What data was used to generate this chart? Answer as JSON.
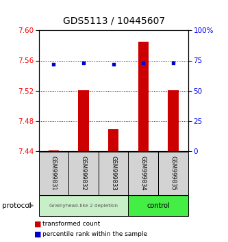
{
  "title": "GDS5113 / 10445607",
  "samples": [
    "GSM999831",
    "GSM999832",
    "GSM999833",
    "GSM999834",
    "GSM999835"
  ],
  "red_values": [
    7.441,
    7.521,
    7.469,
    7.585,
    7.521
  ],
  "blue_values": [
    72,
    73,
    72,
    73,
    73
  ],
  "ylim_left": [
    7.44,
    7.6
  ],
  "ylim_right": [
    0,
    100
  ],
  "yticks_left": [
    7.44,
    7.48,
    7.52,
    7.56,
    7.6
  ],
  "yticks_right": [
    0,
    25,
    50,
    75,
    100
  ],
  "ytick_labels_right": [
    "0",
    "25",
    "50",
    "75",
    "100%"
  ],
  "group1_label": "Grainyhead-like 2 depletion",
  "group2_label": "control",
  "group1_color": "#c8f0c8",
  "group2_color": "#44ee44",
  "protocol_label": "protocol",
  "legend_red": "transformed count",
  "legend_blue": "percentile rank within the sample",
  "red_color": "#cc0000",
  "blue_color": "#0000cc",
  "title_fontsize": 10,
  "tick_fontsize": 7.5,
  "n_group1": 3,
  "n_group2": 2
}
